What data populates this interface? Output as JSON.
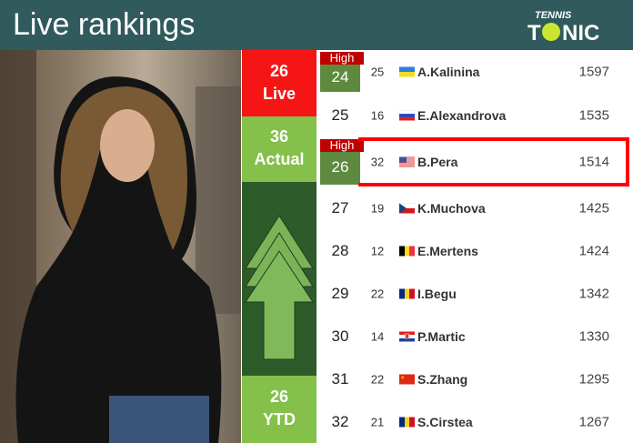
{
  "header": {
    "title": "Live rankings",
    "logo_text": "TENNIS TONIC"
  },
  "side": {
    "live": {
      "value": "26",
      "label": "Live",
      "color": "#f51515"
    },
    "actual": {
      "value": "36",
      "label": "Actual",
      "color": "#84c04a"
    },
    "arrow": "arrow-up-icon",
    "ytd": {
      "value": "26",
      "label": "YTD",
      "color": "#84c04a"
    }
  },
  "rows": [
    {
      "rank": "24",
      "high": "High",
      "prev": "25",
      "flag": "ukraine",
      "name": "A.Kalinina",
      "points": "1597"
    },
    {
      "rank": "25",
      "prev": "16",
      "flag": "russia",
      "name": "E.Alexandrova",
      "points": "1535"
    },
    {
      "rank": "26",
      "high": "High",
      "prev": "32",
      "flag": "usa",
      "name": "B.Pera",
      "points": "1514",
      "selected": true
    },
    {
      "rank": "27",
      "prev": "19",
      "flag": "czech",
      "name": "K.Muchova",
      "points": "1425"
    },
    {
      "rank": "28",
      "prev": "12",
      "flag": "belgium",
      "name": "E.Mertens",
      "points": "1424"
    },
    {
      "rank": "29",
      "prev": "22",
      "flag": "romania",
      "name": "I.Begu",
      "points": "1342"
    },
    {
      "rank": "30",
      "prev": "14",
      "flag": "croatia",
      "name": "P.Martic",
      "points": "1330"
    },
    {
      "rank": "31",
      "prev": "22",
      "flag": "china",
      "name": "S.Zhang",
      "points": "1295"
    },
    {
      "rank": "32",
      "prev": "21",
      "flag": "romania",
      "name": "S.Cirstea",
      "points": "1267"
    }
  ]
}
